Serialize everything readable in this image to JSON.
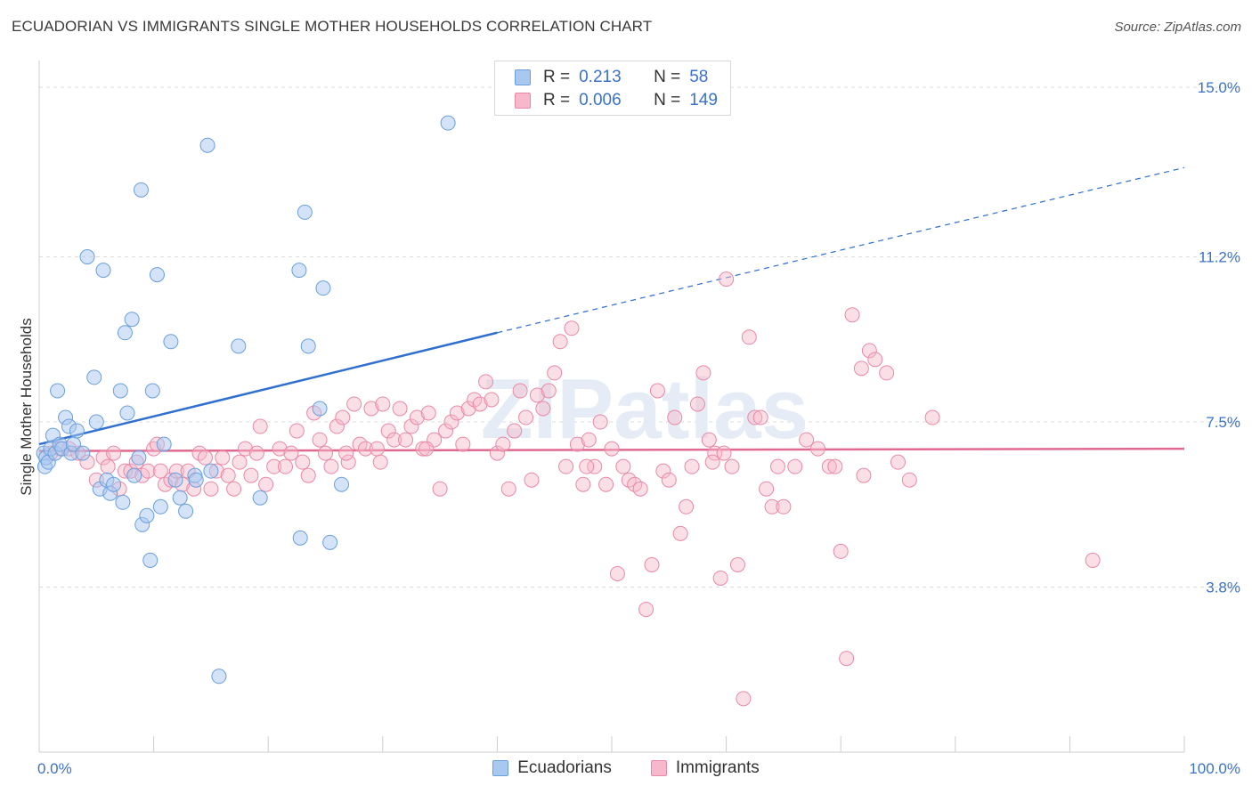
{
  "title": "ECUADORIAN VS IMMIGRANTS SINGLE MOTHER HOUSEHOLDS CORRELATION CHART",
  "source": "Source: ZipAtlas.com",
  "watermark": "ZIPatlas",
  "legend": {
    "r_label": "R =",
    "n_label": "N =",
    "rows": [
      {
        "name": "Ecuadorians",
        "r": "0.213",
        "n": "58"
      },
      {
        "name": "Immigrants",
        "r": "0.006",
        "n": "149"
      }
    ]
  },
  "colors": {
    "ecuadorians_fill": "#a9c8ef",
    "ecuadorians_stroke": "#6a9fdc",
    "ecuadorians_line": "#2f6fd0",
    "immigrants_fill": "#f6b8ca",
    "immigrants_stroke": "#e889a6",
    "immigrants_line": "#e06991",
    "axis_text": "#3b72c8"
  },
  "chart_data": {
    "type": "scatter",
    "title": "ECUADORIAN VS IMMIGRANTS SINGLE MOTHER HOUSEHOLDS CORRELATION CHART",
    "xlabel": "",
    "ylabel": "Single Mother Households",
    "xlim": [
      0,
      100
    ],
    "ylim": [
      0,
      15.5
    ],
    "x_tick_labels": [
      {
        "value": 0,
        "label": "0.0%"
      },
      {
        "value": 100,
        "label": "100.0%"
      }
    ],
    "y_tick_labels": [
      {
        "value": 3.8,
        "label": "3.8%"
      },
      {
        "value": 7.5,
        "label": "7.5%"
      },
      {
        "value": 11.2,
        "label": "11.2%"
      },
      {
        "value": 15.0,
        "label": "15.0%"
      }
    ],
    "series": [
      {
        "name": "Ecuadorians",
        "trend": {
          "x0": 0,
          "y0": 7.0,
          "x_solid_end": 40,
          "y_solid_end": 9.5,
          "x1": 100,
          "y1": 13.2
        },
        "points": [
          [
            0.4,
            6.8
          ],
          [
            0.5,
            6.5
          ],
          [
            0.6,
            6.7
          ],
          [
            0.8,
            6.6
          ],
          [
            1.0,
            6.9
          ],
          [
            1.2,
            7.2
          ],
          [
            1.4,
            6.8
          ],
          [
            1.6,
            8.2
          ],
          [
            1.8,
            7.0
          ],
          [
            2.0,
            6.9
          ],
          [
            2.3,
            7.6
          ],
          [
            2.6,
            7.4
          ],
          [
            2.8,
            6.8
          ],
          [
            3.0,
            7.0
          ],
          [
            3.3,
            7.3
          ],
          [
            3.8,
            6.8
          ],
          [
            4.2,
            11.2
          ],
          [
            4.8,
            8.5
          ],
          [
            5.0,
            7.5
          ],
          [
            5.3,
            6.0
          ],
          [
            5.6,
            10.9
          ],
          [
            5.9,
            6.2
          ],
          [
            6.2,
            5.9
          ],
          [
            6.5,
            6.1
          ],
          [
            7.1,
            8.2
          ],
          [
            7.3,
            5.7
          ],
          [
            7.5,
            9.5
          ],
          [
            7.7,
            7.7
          ],
          [
            8.1,
            9.8
          ],
          [
            8.3,
            6.3
          ],
          [
            8.7,
            6.7
          ],
          [
            8.9,
            12.7
          ],
          [
            9.0,
            5.2
          ],
          [
            9.4,
            5.4
          ],
          [
            9.7,
            4.4
          ],
          [
            9.9,
            8.2
          ],
          [
            10.3,
            10.8
          ],
          [
            10.6,
            5.6
          ],
          [
            10.9,
            7.0
          ],
          [
            11.5,
            9.3
          ],
          [
            11.9,
            6.2
          ],
          [
            12.3,
            5.8
          ],
          [
            12.8,
            5.5
          ],
          [
            13.6,
            6.3
          ],
          [
            13.7,
            6.2
          ],
          [
            14.7,
            13.7
          ],
          [
            15.0,
            6.4
          ],
          [
            15.7,
            1.8
          ],
          [
            17.4,
            9.2
          ],
          [
            19.3,
            5.8
          ],
          [
            22.7,
            10.9
          ],
          [
            22.8,
            4.9
          ],
          [
            23.2,
            12.2
          ],
          [
            23.5,
            9.2
          ],
          [
            24.5,
            7.8
          ],
          [
            24.8,
            10.5
          ],
          [
            25.4,
            4.8
          ],
          [
            26.4,
            6.1
          ],
          [
            35.7,
            14.2
          ]
        ]
      },
      {
        "name": "Immigrants",
        "trend": {
          "x0": 0,
          "y0": 6.85,
          "x1": 100,
          "y1": 6.9
        },
        "points": [
          [
            1.0,
            6.8
          ],
          [
            1.8,
            6.9
          ],
          [
            2.6,
            6.9
          ],
          [
            3.4,
            6.8
          ],
          [
            4.2,
            6.6
          ],
          [
            5.0,
            6.2
          ],
          [
            5.6,
            6.7
          ],
          [
            6.0,
            6.5
          ],
          [
            6.5,
            6.8
          ],
          [
            7.0,
            6.0
          ],
          [
            7.5,
            6.4
          ],
          [
            8.0,
            6.4
          ],
          [
            8.5,
            6.6
          ],
          [
            9.0,
            6.3
          ],
          [
            9.5,
            6.4
          ],
          [
            10.0,
            6.9
          ],
          [
            10.3,
            7.0
          ],
          [
            10.6,
            6.4
          ],
          [
            11.0,
            6.1
          ],
          [
            11.5,
            6.2
          ],
          [
            12.0,
            6.4
          ],
          [
            12.5,
            6.1
          ],
          [
            13.0,
            6.4
          ],
          [
            13.5,
            6.0
          ],
          [
            14.0,
            6.8
          ],
          [
            14.5,
            6.7
          ],
          [
            15.0,
            6.0
          ],
          [
            15.5,
            6.4
          ],
          [
            16.0,
            6.7
          ],
          [
            16.5,
            6.3
          ],
          [
            17.0,
            6.0
          ],
          [
            17.5,
            6.6
          ],
          [
            18.0,
            6.9
          ],
          [
            18.5,
            6.3
          ],
          [
            19.0,
            6.8
          ],
          [
            19.3,
            7.4
          ],
          [
            19.8,
            6.1
          ],
          [
            20.5,
            6.5
          ],
          [
            21.0,
            6.9
          ],
          [
            21.5,
            6.5
          ],
          [
            22.0,
            6.8
          ],
          [
            22.5,
            7.3
          ],
          [
            23.0,
            6.6
          ],
          [
            23.5,
            6.3
          ],
          [
            24.0,
            7.7
          ],
          [
            24.5,
            7.1
          ],
          [
            25.0,
            6.8
          ],
          [
            25.5,
            6.5
          ],
          [
            26.0,
            7.4
          ],
          [
            26.5,
            7.6
          ],
          [
            27.0,
            6.6
          ],
          [
            27.5,
            7.9
          ],
          [
            28.0,
            7.0
          ],
          [
            28.5,
            6.9
          ],
          [
            29.0,
            7.8
          ],
          [
            29.5,
            6.9
          ],
          [
            30.0,
            7.9
          ],
          [
            30.5,
            7.3
          ],
          [
            31.0,
            7.1
          ],
          [
            31.5,
            7.8
          ],
          [
            32.0,
            7.1
          ],
          [
            32.5,
            7.4
          ],
          [
            33.0,
            7.6
          ],
          [
            33.5,
            6.9
          ],
          [
            34.0,
            7.7
          ],
          [
            34.5,
            7.1
          ],
          [
            35.0,
            6.0
          ],
          [
            35.5,
            7.3
          ],
          [
            36.0,
            7.5
          ],
          [
            36.5,
            7.7
          ],
          [
            37.0,
            7.0
          ],
          [
            37.5,
            7.8
          ],
          [
            38.0,
            8.0
          ],
          [
            38.5,
            7.9
          ],
          [
            39.0,
            8.4
          ],
          [
            39.5,
            8.0
          ],
          [
            40.0,
            6.8
          ],
          [
            40.5,
            7.0
          ],
          [
            41.0,
            6.0
          ],
          [
            41.5,
            7.3
          ],
          [
            42.0,
            8.2
          ],
          [
            42.5,
            7.6
          ],
          [
            43.0,
            6.2
          ],
          [
            43.5,
            8.1
          ],
          [
            44.0,
            7.8
          ],
          [
            44.5,
            8.2
          ],
          [
            45.0,
            8.6
          ],
          [
            45.5,
            9.3
          ],
          [
            46.0,
            6.5
          ],
          [
            46.5,
            9.6
          ],
          [
            47.0,
            7.0
          ],
          [
            47.5,
            6.1
          ],
          [
            48.0,
            7.1
          ],
          [
            48.5,
            6.5
          ],
          [
            49.0,
            7.5
          ],
          [
            49.5,
            6.1
          ],
          [
            50.0,
            6.9
          ],
          [
            50.5,
            4.1
          ],
          [
            51.0,
            6.5
          ],
          [
            51.5,
            6.2
          ],
          [
            52.0,
            6.1
          ],
          [
            52.5,
            6.0
          ],
          [
            53.0,
            3.3
          ],
          [
            53.5,
            4.3
          ],
          [
            54.0,
            8.2
          ],
          [
            54.5,
            6.4
          ],
          [
            55.0,
            6.2
          ],
          [
            55.5,
            7.6
          ],
          [
            56.0,
            5.0
          ],
          [
            56.5,
            5.6
          ],
          [
            57.0,
            6.5
          ],
          [
            57.5,
            7.9
          ],
          [
            58.0,
            8.6
          ],
          [
            58.5,
            7.1
          ],
          [
            59.0,
            6.8
          ],
          [
            59.5,
            4.0
          ],
          [
            60.0,
            10.7
          ],
          [
            60.5,
            6.5
          ],
          [
            61.0,
            4.3
          ],
          [
            61.5,
            1.3
          ],
          [
            62.0,
            9.4
          ],
          [
            62.5,
            7.6
          ],
          [
            63.0,
            7.6
          ],
          [
            63.5,
            6.0
          ],
          [
            64.0,
            5.6
          ],
          [
            64.5,
            6.5
          ],
          [
            65.0,
            5.6
          ],
          [
            66.0,
            6.5
          ],
          [
            67.0,
            7.1
          ],
          [
            68.0,
            6.9
          ],
          [
            69.0,
            6.5
          ],
          [
            70.0,
            4.6
          ],
          [
            71.0,
            9.9
          ],
          [
            72.0,
            6.3
          ],
          [
            72.5,
            9.1
          ],
          [
            73.0,
            8.9
          ],
          [
            74.0,
            8.6
          ],
          [
            75.0,
            6.6
          ],
          [
            76.0,
            6.2
          ],
          [
            78.0,
            7.6
          ],
          [
            92.0,
            4.4
          ],
          [
            69.5,
            6.5
          ],
          [
            70.5,
            2.2
          ],
          [
            71.8,
            8.7
          ],
          [
            47.8,
            6.5
          ],
          [
            29.8,
            6.6
          ],
          [
            33.8,
            6.9
          ],
          [
            26.8,
            6.8
          ],
          [
            59.8,
            6.8
          ],
          [
            58.8,
            6.6
          ]
        ]
      }
    ]
  }
}
